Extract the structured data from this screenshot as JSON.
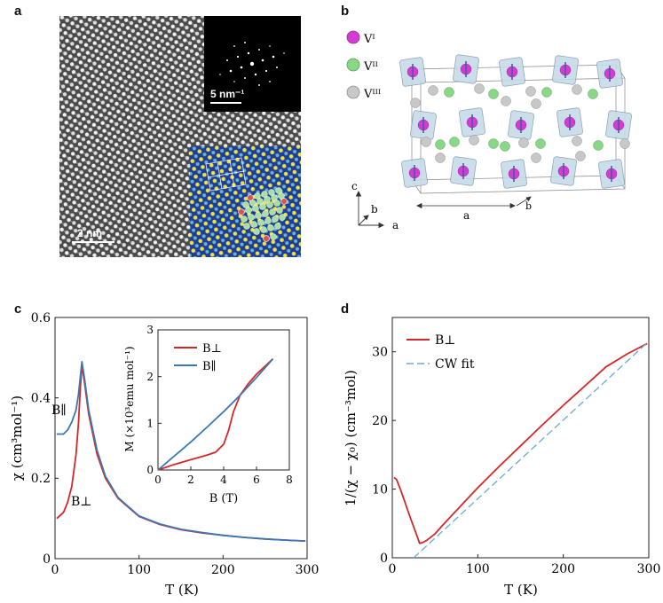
{
  "figure": {
    "panel_labels": [
      "a",
      "b",
      "c",
      "d"
    ]
  },
  "panel_a": {
    "fft_scale_label": "5 nm⁻¹",
    "image_scale_label": "2 nm",
    "colors": {
      "inset_bg": "#0d2f8a",
      "atom_hot": "#f2e23a"
    }
  },
  "panel_b": {
    "legend": [
      {
        "label": "Vᴵ",
        "color": "#d63ad6"
      },
      {
        "label": "Vᴵᴵ",
        "color": "#88d888"
      },
      {
        "label": "Vᴵᴵᴵ",
        "color": "#c8c8c8"
      }
    ],
    "axes": {
      "c": "c",
      "b": "b",
      "a": "a"
    },
    "lattice_a": "a",
    "lattice_b": "b"
  },
  "chart_data": [
    {
      "id": "c",
      "type": "line",
      "title": "",
      "xlabel": "T (K)",
      "ylabel": "χ (cm³mol⁻¹)",
      "xlim": [
        0,
        300
      ],
      "ylim": [
        0,
        0.6
      ],
      "xticks": [
        0,
        100,
        200,
        300
      ],
      "yticks": [
        0,
        0.2,
        0.4,
        0.6
      ],
      "xtick_labels": [
        "0",
        "100",
        "200",
        "300"
      ],
      "ytick_labels": [
        "0",
        "0.2",
        "0.4",
        "0.6"
      ],
      "curve_labels": {
        "parallel": "B∥",
        "perp": "B⊥"
      },
      "series": [
        {
          "name": "B⊥",
          "color": "#d62728",
          "x": [
            2,
            10,
            15,
            20,
            25,
            28,
            30,
            32,
            35,
            40,
            50,
            60,
            75,
            100,
            125,
            150,
            175,
            200,
            225,
            250,
            275,
            298
          ],
          "y": [
            0.1,
            0.115,
            0.14,
            0.18,
            0.26,
            0.34,
            0.42,
            0.48,
            0.44,
            0.36,
            0.26,
            0.2,
            0.15,
            0.105,
            0.085,
            0.072,
            0.064,
            0.058,
            0.053,
            0.049,
            0.046,
            0.044
          ]
        },
        {
          "name": "B∥",
          "color": "#3a78b4",
          "x": [
            2,
            10,
            15,
            20,
            25,
            28,
            30,
            32,
            35,
            40,
            50,
            60,
            75,
            100,
            125,
            150,
            175,
            200,
            225,
            250,
            275,
            298
          ],
          "y": [
            0.31,
            0.31,
            0.32,
            0.34,
            0.37,
            0.41,
            0.45,
            0.49,
            0.45,
            0.37,
            0.27,
            0.205,
            0.152,
            0.106,
            0.086,
            0.073,
            0.065,
            0.058,
            0.053,
            0.049,
            0.046,
            0.044
          ]
        }
      ],
      "inset": {
        "type": "line",
        "xlabel": "B (T)",
        "ylabel": "M (×10³emu mol⁻¹)",
        "xlim": [
          0,
          8
        ],
        "ylim": [
          0,
          3
        ],
        "xticks": [
          0,
          2,
          4,
          6,
          8
        ],
        "yticks": [
          0,
          1,
          2,
          3
        ],
        "xtick_labels": [
          "0",
          "2",
          "4",
          "6",
          "8"
        ],
        "ytick_labels": [
          "0",
          "1",
          "2",
          "3"
        ],
        "legend": [
          "B⊥",
          "B∥"
        ],
        "series": [
          {
            "name": "B⊥",
            "color": "#d62728",
            "x": [
              0,
              1,
              2,
              3,
              3.5,
              4,
              4.3,
              4.6,
              5,
              5.5,
              6,
              7
            ],
            "y": [
              0,
              0.12,
              0.22,
              0.32,
              0.38,
              0.55,
              0.85,
              1.25,
              1.6,
              1.85,
              2.05,
              2.38
            ]
          },
          {
            "name": "B∥",
            "color": "#3a78b4",
            "x": [
              0,
              1,
              2,
              3,
              4,
              5,
              6,
              7
            ],
            "y": [
              0,
              0.3,
              0.6,
              0.92,
              1.25,
              1.6,
              1.98,
              2.38
            ]
          }
        ]
      }
    },
    {
      "id": "d",
      "type": "line",
      "title": "",
      "xlabel": "T (K)",
      "ylabel": "1/(χ − χ₀) (cm⁻³mol)",
      "xlim": [
        0,
        300
      ],
      "ylim": [
        0,
        35
      ],
      "xticks": [
        0,
        100,
        200,
        300
      ],
      "yticks": [
        0,
        10,
        20,
        30
      ],
      "xtick_labels": [
        "0",
        "100",
        "200",
        "300"
      ],
      "ytick_labels": [
        "0",
        "10",
        "20",
        "30"
      ],
      "legend": [
        "B⊥",
        "CW fit"
      ],
      "series": [
        {
          "name": "B⊥",
          "color": "#d62728",
          "x": [
            2,
            5,
            10,
            15,
            20,
            25,
            30,
            32,
            35,
            40,
            50,
            60,
            75,
            100,
            125,
            150,
            175,
            200,
            225,
            250,
            275,
            298
          ],
          "y": [
            11.7,
            11.4,
            9.8,
            8.0,
            6.2,
            4.5,
            2.8,
            2.1,
            2.2,
            2.5,
            3.5,
            4.9,
            6.9,
            10.2,
            13.3,
            16.3,
            19.3,
            22.2,
            25.0,
            27.8,
            29.7,
            31.2
          ]
        },
        {
          "name": "CW fit",
          "color": "#6aa8d8",
          "x": [
            25,
            298
          ],
          "y": [
            0,
            31.3
          ]
        }
      ]
    }
  ]
}
